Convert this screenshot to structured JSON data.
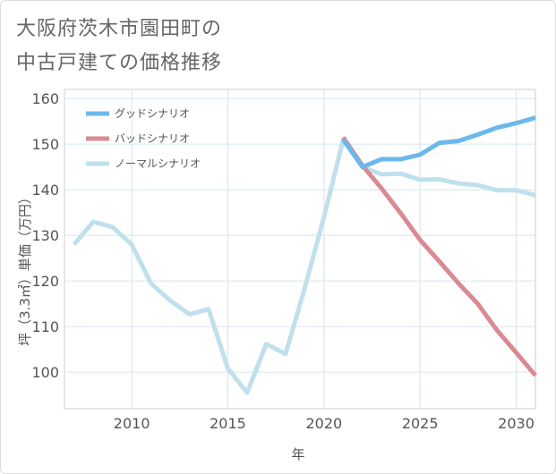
{
  "title_lines": [
    "大阪府茨木市園田町の",
    "中古戸建ての価格推移"
  ],
  "colors": {
    "good": "#6cb8ec",
    "bad": "#d98a92",
    "normal": "#bfe0ec",
    "grid": "#dbe8f0",
    "text": "#555555"
  },
  "chart_data": {
    "type": "line",
    "title": "大阪府茨木市園田町の中古戸建ての価格推移",
    "xlabel": "年",
    "ylabel": "坪（3.3㎡）単価（万円）",
    "xlim": [
      2006.5,
      2031
    ],
    "ylim": [
      92,
      162
    ],
    "xticks": [
      2010,
      2015,
      2020,
      2025,
      2030
    ],
    "yticks": [
      100,
      110,
      120,
      130,
      140,
      150,
      160
    ],
    "legend_position": "top-left",
    "series": [
      {
        "name": "グッドシナリオ",
        "color_key": "good",
        "x": [
          2021,
          2022,
          2023,
          2024,
          2025,
          2026,
          2027,
          2028,
          2029,
          2030,
          2031
        ],
        "y": [
          151,
          145,
          146.7,
          146.7,
          147.7,
          150.3,
          150.7,
          152.1,
          153.6,
          154.6,
          155.8
        ]
      },
      {
        "name": "バッドシナリオ",
        "color_key": "bad",
        "x": [
          2021,
          2022,
          2023,
          2024,
          2025,
          2026,
          2027,
          2028,
          2029,
          2030,
          2031
        ],
        "y": [
          151.5,
          145.3,
          140.3,
          134.8,
          129,
          124.3,
          119.5,
          115,
          109.2,
          104.3,
          99.3
        ]
      },
      {
        "name": "ノーマルシナリオ",
        "color_key": "normal",
        "x": [
          2007,
          2008,
          2009,
          2010,
          2011,
          2012,
          2013,
          2014,
          2015,
          2016,
          2017,
          2018,
          2019,
          2020,
          2021,
          2022,
          2023,
          2024,
          2025,
          2026,
          2027,
          2028,
          2029,
          2030,
          2031
        ],
        "y": [
          128,
          133,
          131.8,
          128,
          119.5,
          115.7,
          112.7,
          113.8,
          100.8,
          95.5,
          106.2,
          104,
          118.5,
          134,
          151,
          145,
          143.4,
          143.5,
          142.2,
          142.3,
          141.4,
          141,
          139.9,
          139.9,
          138.8
        ]
      }
    ]
  }
}
